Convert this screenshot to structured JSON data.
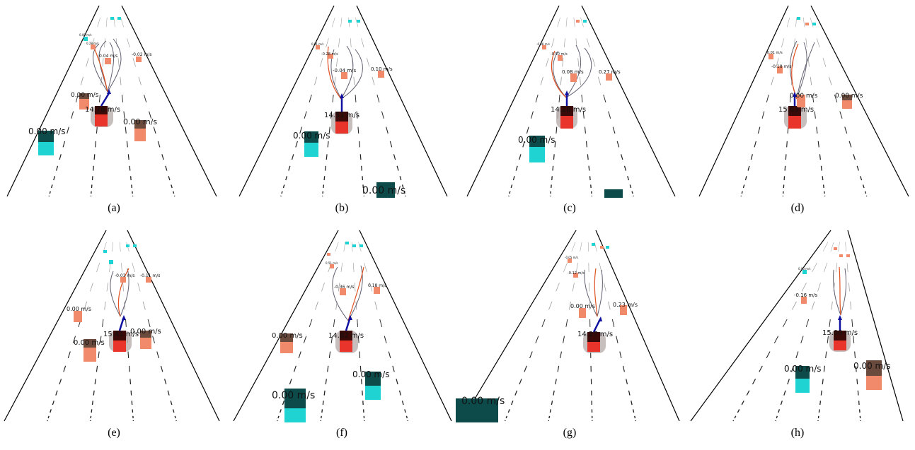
{
  "panels": [
    {
      "caption": "(a)",
      "labels": [
        {
          "text": "14.76 m/s",
          "role": "ego-speed"
        },
        {
          "text": "0.00 m/s",
          "role": "vehicle-speed"
        },
        {
          "text": "0.00 m/s",
          "role": "vehicle-speed"
        },
        {
          "text": "0.00 m/s",
          "role": "vehicle-speed"
        },
        {
          "text": "0.04 m/s",
          "role": "vehicle-speed"
        },
        {
          "text": "-0.02 m/s",
          "role": "vehicle-speed"
        },
        {
          "text": "0.28 m/s",
          "role": "vehicle-speed"
        },
        {
          "text": "0.00 m/s",
          "role": "vehicle-speed"
        }
      ]
    },
    {
      "caption": "(b)",
      "labels": [
        {
          "text": "14.51 m/s",
          "role": "ego-speed"
        },
        {
          "text": "0.00 m/s",
          "role": "vehicle-speed"
        },
        {
          "text": "0.00 m/s",
          "role": "vehicle-speed"
        },
        {
          "text": "-0.04 m/s",
          "role": "vehicle-speed"
        },
        {
          "text": "0.10 m/s",
          "role": "vehicle-speed"
        },
        {
          "text": "-0.28 m/s",
          "role": "vehicle-speed"
        },
        {
          "text": "0.01 m/s",
          "role": "vehicle-speed"
        }
      ]
    },
    {
      "caption": "(c)",
      "labels": [
        {
          "text": "14.28 m/s",
          "role": "ego-speed"
        },
        {
          "text": "0.00 m/s",
          "role": "vehicle-speed"
        },
        {
          "text": "0.08 m/s",
          "role": "vehicle-speed"
        },
        {
          "text": "0.27 m/s",
          "role": "vehicle-speed"
        },
        {
          "text": "-0.50 m/s",
          "role": "vehicle-speed"
        },
        {
          "text": "-0.08 m/s",
          "role": "vehicle-speed"
        }
      ]
    },
    {
      "caption": "(d)",
      "labels": [
        {
          "text": "15.63 m/s",
          "role": "ego-speed"
        },
        {
          "text": "0.00 m/s",
          "role": "vehicle-speed"
        },
        {
          "text": "0.00 m/s",
          "role": "vehicle-speed"
        },
        {
          "text": "-0.18 m/s",
          "role": "vehicle-speed"
        },
        {
          "text": "-0.01 m/s",
          "role": "vehicle-speed"
        }
      ]
    },
    {
      "caption": "(e)",
      "labels": [
        {
          "text": "15.41 m/s",
          "role": "ego-speed"
        },
        {
          "text": "0.00 m/s",
          "role": "vehicle-speed"
        },
        {
          "text": "0.00 m/s",
          "role": "vehicle-speed"
        },
        {
          "text": "0.00 m/s",
          "role": "vehicle-speed"
        },
        {
          "text": "-0.03 m/s",
          "role": "vehicle-speed"
        },
        {
          "text": "-0.11 m/s",
          "role": "vehicle-speed"
        }
      ]
    },
    {
      "caption": "(f)",
      "labels": [
        {
          "text": "14.82 m/s",
          "role": "ego-speed"
        },
        {
          "text": "0.00 m/s",
          "role": "vehicle-speed"
        },
        {
          "text": "0.00 m/s",
          "role": "vehicle-speed"
        },
        {
          "text": "0.00 m/s",
          "role": "vehicle-speed"
        },
        {
          "text": "-0.36 m/s",
          "role": "vehicle-speed"
        },
        {
          "text": "0.18 m/s",
          "role": "vehicle-speed"
        },
        {
          "text": "0.51 m/s",
          "role": "vehicle-speed"
        }
      ]
    },
    {
      "caption": "(g)",
      "labels": [
        {
          "text": "14.27 m/s",
          "role": "ego-speed"
        },
        {
          "text": "0.00 m/s",
          "role": "vehicle-speed"
        },
        {
          "text": "0.00 m/s",
          "role": "vehicle-speed"
        },
        {
          "text": "0.23 m/s",
          "role": "vehicle-speed"
        },
        {
          "text": "-0.12 m/s",
          "role": "vehicle-speed"
        },
        {
          "text": "-0.05 m/s",
          "role": "vehicle-speed"
        }
      ]
    },
    {
      "caption": "(h)",
      "labels": [
        {
          "text": "15.00 m/s",
          "role": "ego-speed"
        },
        {
          "text": "0.00 m/s",
          "role": "vehicle-speed"
        },
        {
          "text": "0.00 m/s",
          "role": "vehicle-speed"
        },
        {
          "text": "0.00 m/s",
          "role": "vehicle-speed"
        },
        {
          "text": "-0.16 m/s",
          "role": "vehicle-speed"
        }
      ]
    }
  ],
  "colors": {
    "road_line": "#000000",
    "lane_dash": "#222222",
    "ego_red": "#e8342a",
    "ego_dark": "#3a0a08",
    "ego_shadow": "#b9aeae",
    "vehicle_salmon": "#f08a6a",
    "vehicle_brown": "#6b4a3e",
    "truck_teal": "#1fd3d3",
    "truck_dark": "#0d4a4a",
    "arrow_blue": "#1010a0",
    "plan_orange": "#e05020",
    "plan_gray": "#606070"
  }
}
